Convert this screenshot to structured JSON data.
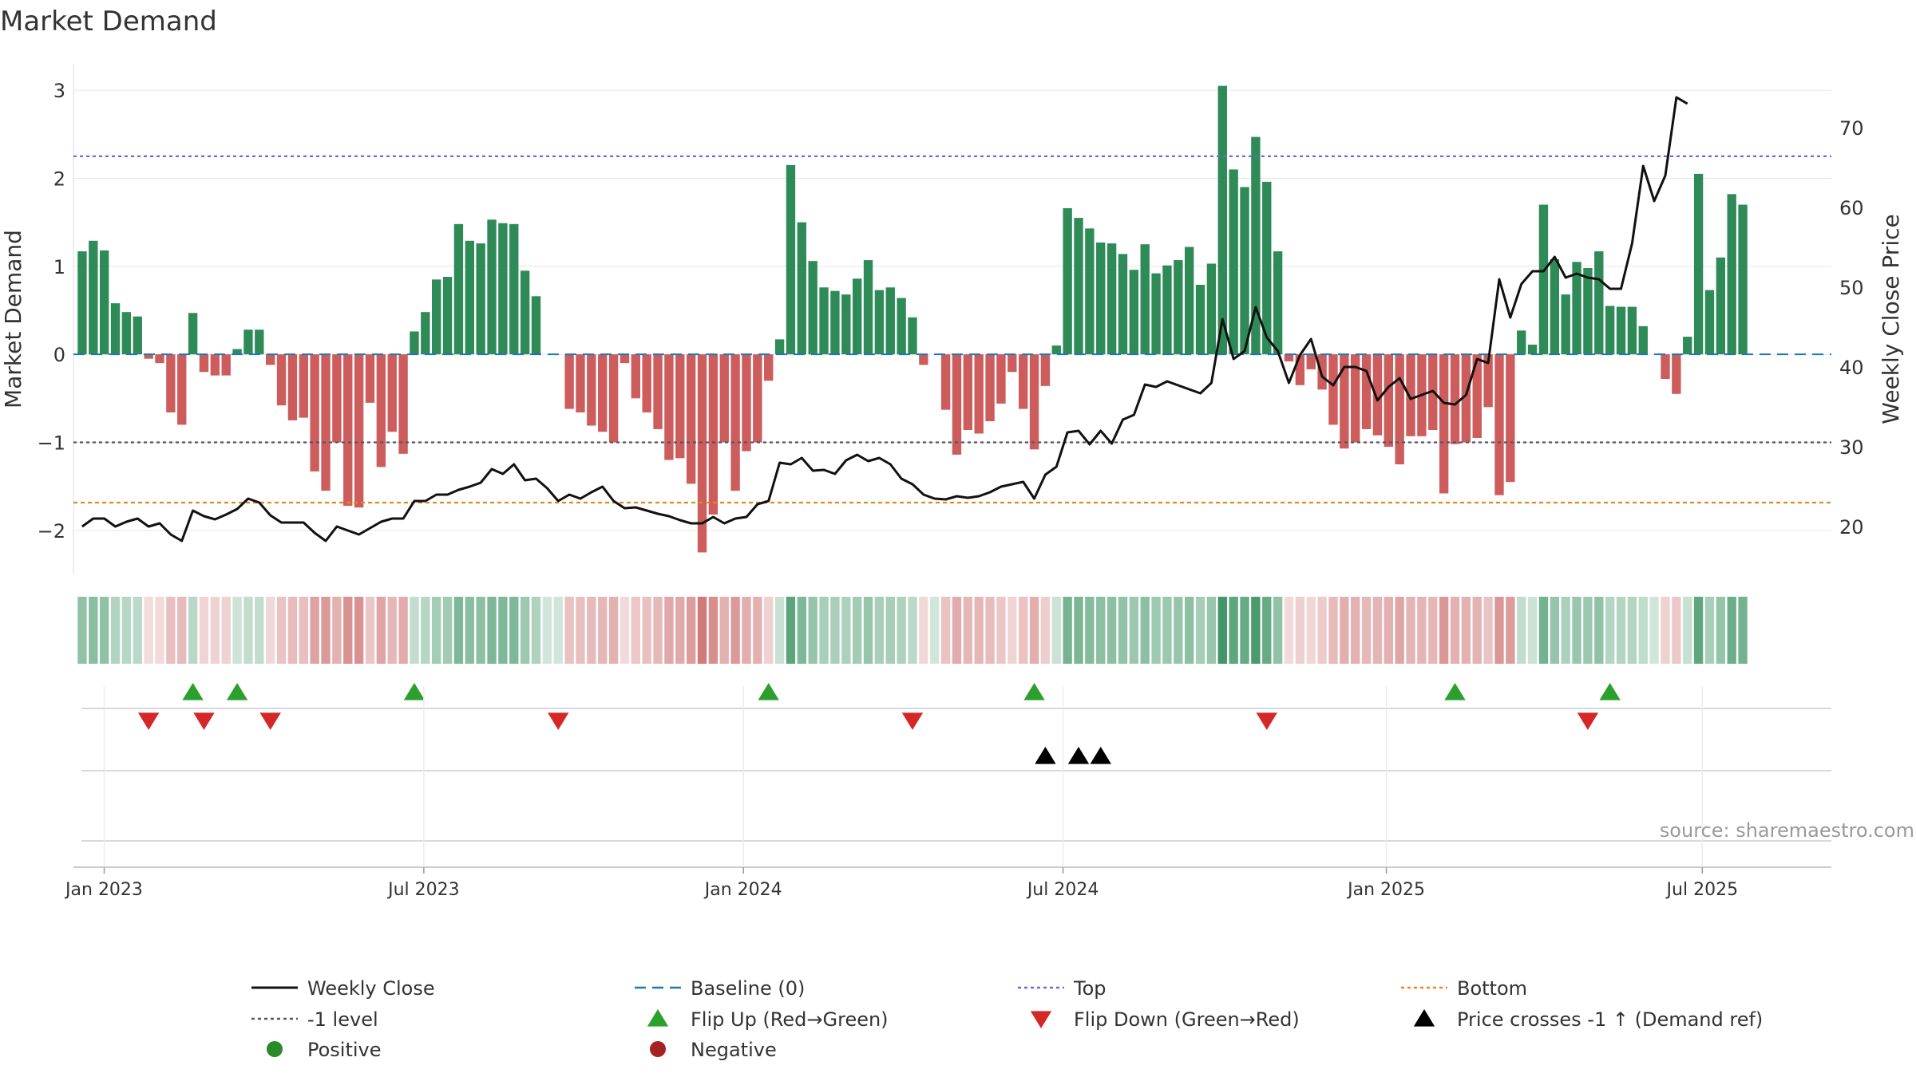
{
  "chart_data": {
    "type": "bar",
    "title": "Market Demand",
    "ylabel": "Market Demand",
    "y2label": "Weekly Close Price",
    "ylim": [
      -2.5,
      3.3
    ],
    "y2lim": [
      14,
      78
    ],
    "yticks": [
      -2,
      -1,
      0,
      1,
      2,
      3
    ],
    "ytick_labels": [
      "−2",
      "−1",
      "0",
      "1",
      "2",
      "3"
    ],
    "y2ticks": [
      20,
      30,
      40,
      50,
      60,
      70
    ],
    "y2tick_labels": [
      "20",
      "30",
      "40",
      "50",
      "60",
      "70"
    ],
    "date_range_weeks": [
      -2.5,
      140.5
    ],
    "xticks": [
      {
        "label": "Jan 2023",
        "week": 0
      },
      {
        "label": "Jul 2023",
        "week": 26
      },
      {
        "label": "Jan 2024",
        "week": 52
      },
      {
        "label": "Jul 2024",
        "week": 78
      },
      {
        "label": "Jan 2025",
        "week": 104.3
      },
      {
        "label": "Jul 2025",
        "week": 130
      }
    ],
    "reference_lines": {
      "top": 2.25,
      "bottom_price": 23,
      "minus1": -1,
      "baseline": 0
    },
    "demand": [
      1.17,
      1.29,
      1.18,
      0.58,
      0.48,
      0.43,
      -0.05,
      -0.1,
      -0.66,
      -0.8,
      0.47,
      -0.2,
      -0.24,
      -0.24,
      0.06,
      0.28,
      0.28,
      -0.12,
      -0.58,
      -0.75,
      -0.72,
      -1.33,
      -1.55,
      -1.0,
      -1.72,
      -1.74,
      -0.55,
      -1.28,
      -0.88,
      -1.13,
      0.26,
      0.48,
      0.85,
      0.88,
      1.48,
      1.29,
      1.26,
      1.53,
      1.49,
      1.48,
      0.95,
      0.66,
      0.0,
      0.0,
      -0.62,
      -0.66,
      -0.81,
      -0.88,
      -1.0,
      -0.1,
      -0.5,
      -0.66,
      -0.85,
      -1.2,
      -1.18,
      -1.47,
      -2.25,
      -1.82,
      -1.0,
      -1.55,
      -1.1,
      -1.0,
      -0.3,
      0.17,
      2.15,
      1.5,
      1.06,
      0.76,
      0.72,
      0.68,
      0.86,
      1.07,
      0.73,
      0.76,
      0.64,
      0.42,
      -0.12,
      0.0,
      -0.63,
      -1.14,
      -0.86,
      -0.9,
      -0.76,
      -0.56,
      -0.2,
      -0.62,
      -1.08,
      -0.36,
      0.1,
      1.66,
      1.55,
      1.43,
      1.27,
      1.26,
      1.14,
      0.96,
      1.25,
      0.92,
      1.01,
      1.07,
      1.22,
      0.79,
      1.03,
      3.05,
      2.1,
      1.9,
      2.47,
      1.96,
      1.17,
      -0.08,
      -0.35,
      -0.17,
      -0.4,
      -0.8,
      -1.07,
      -1.0,
      -0.85,
      -0.92,
      -1.05,
      -1.25,
      -0.93,
      -0.93,
      -0.86,
      -1.58,
      -1.02,
      -1.0,
      -0.95,
      -0.6,
      -1.6,
      -1.45,
      0.27,
      0.11,
      1.7,
      1.08,
      0.68,
      1.05,
      0.98,
      1.17,
      0.55,
      0.54,
      0.54,
      0.32,
      0.0,
      -0.28,
      -0.45,
      0.2,
      2.05,
      0.73,
      1.1,
      1.82,
      1.7
    ],
    "price": [
      20.0,
      21.0,
      21.0,
      20.0,
      20.6,
      21.0,
      20.0,
      20.4,
      19.0,
      18.2,
      22.0,
      21.3,
      20.9,
      21.5,
      22.2,
      23.5,
      23.0,
      21.4,
      20.5,
      20.5,
      20.5,
      19.2,
      18.2,
      20.0,
      19.5,
      19.0,
      19.8,
      20.6,
      21.0,
      21.0,
      23.2,
      23.2,
      24.0,
      24.0,
      24.6,
      25.0,
      25.5,
      27.2,
      26.6,
      27.8,
      25.8,
      26.0,
      24.8,
      23.2,
      24.0,
      23.5,
      24.3,
      25.0,
      23.2,
      22.3,
      22.4,
      22.0,
      21.6,
      21.3,
      20.8,
      20.4,
      20.4,
      21.2,
      20.4,
      21.0,
      21.2,
      22.8,
      23.2,
      28.0,
      27.8,
      28.6,
      27.0,
      27.1,
      26.6,
      28.3,
      29.0,
      28.2,
      28.6,
      27.8,
      26.0,
      25.3,
      24.0,
      23.5,
      23.4,
      23.8,
      23.6,
      23.8,
      24.3,
      25.0,
      25.3,
      25.6,
      23.5,
      26.5,
      27.5,
      31.8,
      32.0,
      30.3,
      32.0,
      30.4,
      33.4,
      34.0,
      37.8,
      37.5,
      38.2,
      37.7,
      37.2,
      36.7,
      38.0,
      46.0,
      41.0,
      42.0,
      47.5,
      43.7,
      42.0,
      38.0,
      41.5,
      43.5,
      38.8,
      37.7,
      40.0,
      40.0,
      39.5,
      35.8,
      37.5,
      38.6,
      36.0,
      36.5,
      37.0,
      35.5,
      35.3,
      36.5,
      41.0,
      40.5,
      51.0,
      46.2,
      50.4,
      52.0,
      52.0,
      53.8,
      51.2,
      51.7,
      51.2,
      51.0,
      49.8,
      49.8,
      55.5,
      65.2,
      60.8,
      64.0,
      73.8,
      73.0
    ],
    "flip_up_weeks": [
      10,
      14,
      30,
      62,
      86,
      124,
      138
    ],
    "flip_down_weeks": [
      6,
      11,
      17,
      43,
      75,
      107,
      136
    ],
    "price_cross_weeks": [
      87,
      90,
      92
    ]
  },
  "legend": [
    {
      "label": "Weekly Close",
      "symbol": "solid-line",
      "color": "#111111"
    },
    {
      "label": "Baseline (0)",
      "symbol": "dashed-line",
      "color": "#1f77b4"
    },
    {
      "label": "Top",
      "symbol": "dotted-line",
      "color": "#6a6adc"
    },
    {
      "label": "Bottom",
      "symbol": "dotted-line",
      "color": "#e08a1e"
    },
    {
      "label": "-1 level",
      "symbol": "dotted-line",
      "color": "#555566"
    },
    {
      "label": "Flip Up (Red→Green)",
      "symbol": "triangle-up",
      "color": "#2ca02c"
    },
    {
      "label": "Flip Down (Green→Red)",
      "symbol": "triangle-down",
      "color": "#d62728"
    },
    {
      "label": "Price crosses -1 ↑ (Demand ref)",
      "symbol": "triangle-up",
      "color": "#000000"
    },
    {
      "label": "Positive",
      "symbol": "circle",
      "color": "#2a8a2a"
    },
    {
      "label": "Negative",
      "symbol": "circle",
      "color": "#a52222"
    }
  ],
  "colors": {
    "positive_bar": "#2e8b57",
    "negative_bar": "#cd5c5c",
    "price_line": "#111111",
    "top_line": "#6a6adc",
    "bottom_line": "#e08a1e",
    "minus1_line": "#555566",
    "baseline": "#1f77b4"
  },
  "source": "source: sharemaestro.com"
}
